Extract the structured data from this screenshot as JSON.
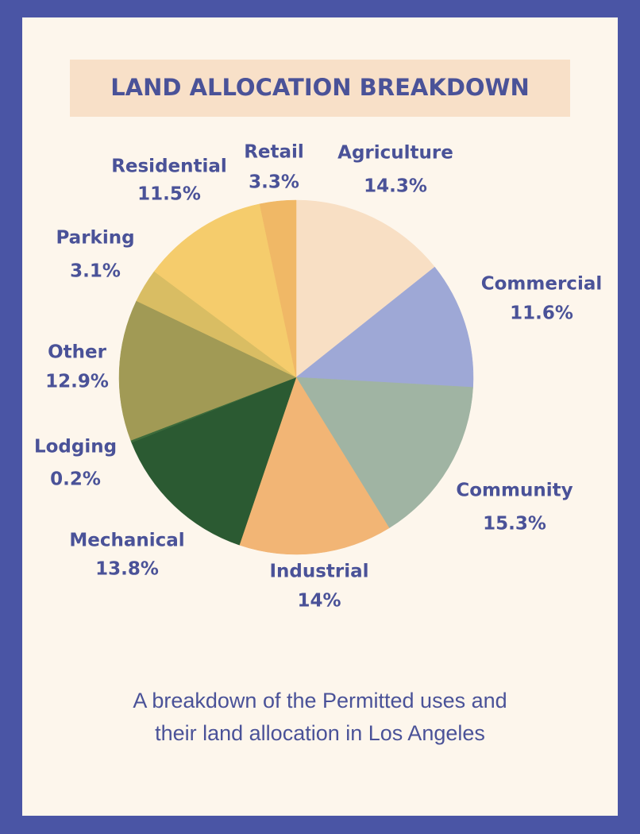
{
  "chart_data": {
    "type": "pie",
    "title": "LAND ALLOCATION BREAKDOWN",
    "categories": [
      "Agriculture",
      "Commercial",
      "Community",
      "Industrial",
      "Mechanical",
      "Lodging",
      "Other",
      "Parking",
      "Residential",
      "Retail"
    ],
    "values": [
      14.3,
      11.6,
      15.3,
      14,
      13.8,
      0.2,
      12.9,
      3.1,
      11.5,
      3.3
    ],
    "value_labels": [
      "14.3%",
      "11.6%",
      "15.3%",
      "14%",
      "13.8%",
      "0.2%",
      "12.9%",
      "3.1%",
      "11.5%",
      "3.3%"
    ],
    "colors": [
      "#f8dfc4",
      "#9ea8d6",
      "#a0b4a3",
      "#f2b575",
      "#2b5a32",
      "#3d6b3b",
      "#a19a55",
      "#d9bd63",
      "#f5cc6c",
      "#f0b866"
    ],
    "subtitle": [
      "A breakdown of the Permitted uses and",
      "their land allocation in Los Angeles"
    ]
  }
}
